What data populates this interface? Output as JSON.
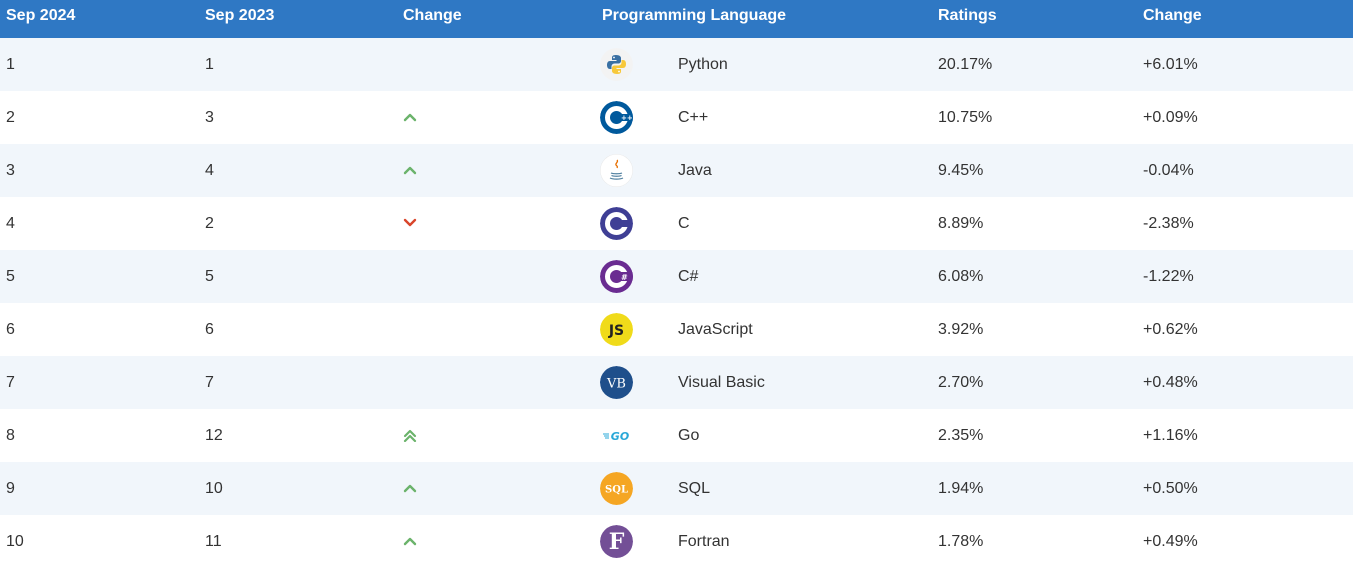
{
  "header": {
    "col_sep2024": "Sep 2024",
    "col_sep2023": "Sep 2023",
    "col_change": "Change",
    "col_language": "Programming Language",
    "col_ratings": "Ratings",
    "col_change2": "Change"
  },
  "colors": {
    "header_bg": "#2f78c4",
    "up": "#6bb36b",
    "down": "#d9452b"
  },
  "rows": [
    {
      "rank": "1",
      "prev": "1",
      "trend": "none",
      "icon": "python-icon",
      "language": "Python",
      "rating": "20.17%",
      "change": "+6.01%"
    },
    {
      "rank": "2",
      "prev": "3",
      "trend": "up",
      "icon": "cplusplus-icon",
      "language": "C++",
      "rating": "10.75%",
      "change": "+0.09%"
    },
    {
      "rank": "3",
      "prev": "4",
      "trend": "up",
      "icon": "java-icon",
      "language": "Java",
      "rating": "9.45%",
      "change": "-0.04%"
    },
    {
      "rank": "4",
      "prev": "2",
      "trend": "down",
      "icon": "c-icon",
      "language": "C",
      "rating": "8.89%",
      "change": "-2.38%"
    },
    {
      "rank": "5",
      "prev": "5",
      "trend": "none",
      "icon": "csharp-icon",
      "language": "C#",
      "rating": "6.08%",
      "change": "-1.22%"
    },
    {
      "rank": "6",
      "prev": "6",
      "trend": "none",
      "icon": "javascript-icon",
      "language": "JavaScript",
      "rating": "3.92%",
      "change": "+0.62%"
    },
    {
      "rank": "7",
      "prev": "7",
      "trend": "none",
      "icon": "visual-basic-icon",
      "language": "Visual Basic",
      "rating": "2.70%",
      "change": "+0.48%"
    },
    {
      "rank": "8",
      "prev": "12",
      "trend": "up2",
      "icon": "go-icon",
      "language": "Go",
      "rating": "2.35%",
      "change": "+1.16%"
    },
    {
      "rank": "9",
      "prev": "10",
      "trend": "up",
      "icon": "sql-icon",
      "language": "SQL",
      "rating": "1.94%",
      "change": "+0.50%"
    },
    {
      "rank": "10",
      "prev": "11",
      "trend": "up",
      "icon": "fortran-icon",
      "language": "Fortran",
      "rating": "1.78%",
      "change": "+0.49%"
    }
  ]
}
